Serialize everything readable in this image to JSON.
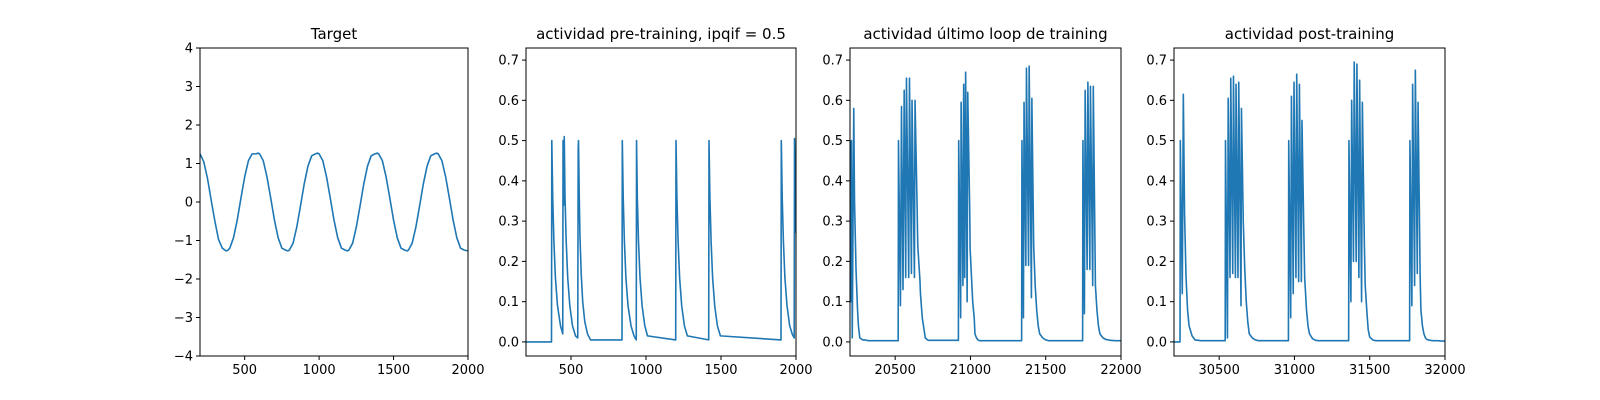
{
  "chart_data": [
    {
      "type": "line",
      "title": "Target",
      "xlabel": "",
      "ylabel": "",
      "xlim": [
        200,
        2000
      ],
      "ylim": [
        -4,
        4
      ],
      "xticks": [
        500,
        1000,
        1500,
        2000
      ],
      "yticks": [
        -4,
        -3,
        -2,
        -1,
        0,
        1,
        2,
        3,
        4
      ],
      "ytick_labels": [
        "−4",
        "−3",
        "−2",
        "−1",
        "0",
        "1",
        "2",
        "3",
        "4"
      ],
      "grid": false,
      "color": "#1f77b4",
      "series": [
        {
          "x": [
            200,
            225,
            250,
            275,
            300,
            325,
            350,
            375,
            385,
            400,
            425,
            450,
            475,
            500,
            525,
            550,
            575,
            590,
            600,
            625,
            650,
            675,
            700,
            725,
            750,
            775,
            790,
            800,
            825,
            850,
            875,
            900,
            925,
            950,
            975,
            990,
            1000,
            1025,
            1050,
            1075,
            1100,
            1125,
            1150,
            1175,
            1190,
            1200,
            1225,
            1250,
            1275,
            1300,
            1325,
            1350,
            1375,
            1390,
            1400,
            1425,
            1450,
            1475,
            1500,
            1525,
            1550,
            1575,
            1590,
            1600,
            1625,
            1650,
            1675,
            1700,
            1725,
            1750,
            1775,
            1790,
            1800,
            1825,
            1850,
            1875,
            1900,
            1925,
            1950,
            1975,
            2000
          ],
          "y": [
            1.25,
            1.05,
            0.62,
            0.05,
            -0.5,
            -0.98,
            -1.2,
            -1.27,
            -1.26,
            -1.2,
            -0.93,
            -0.47,
            0.1,
            0.65,
            1.07,
            1.25,
            1.25,
            1.27,
            1.25,
            1.07,
            0.65,
            0.1,
            -0.47,
            -0.93,
            -1.2,
            -1.25,
            -1.27,
            -1.25,
            -1.07,
            -0.65,
            -0.1,
            0.47,
            0.93,
            1.2,
            1.25,
            1.27,
            1.25,
            1.07,
            0.65,
            0.1,
            -0.47,
            -0.93,
            -1.2,
            -1.25,
            -1.27,
            -1.25,
            -1.07,
            -0.65,
            -0.1,
            0.47,
            0.93,
            1.2,
            1.25,
            1.27,
            1.25,
            1.07,
            0.65,
            0.1,
            -0.47,
            -0.93,
            -1.2,
            -1.25,
            -1.27,
            -1.25,
            -1.07,
            -0.65,
            -0.1,
            0.47,
            0.93,
            1.2,
            1.25,
            1.27,
            1.25,
            1.07,
            0.65,
            0.1,
            -0.47,
            -0.93,
            -1.2,
            -1.25,
            -1.27
          ]
        }
      ]
    },
    {
      "type": "line",
      "title": "actividad pre-training, ipqif = 0.5",
      "xlabel": "",
      "ylabel": "",
      "xlim": [
        200,
        2000
      ],
      "ylim": [
        -0.035,
        0.73
      ],
      "xticks": [
        500,
        1000,
        1500,
        2000
      ],
      "yticks": [
        0.0,
        0.1,
        0.2,
        0.3,
        0.4,
        0.5,
        0.6,
        0.7
      ],
      "ytick_labels": [
        "0.0",
        "0.1",
        "0.2",
        "0.3",
        "0.4",
        "0.5",
        "0.6",
        "0.7"
      ],
      "grid": false,
      "color": "#1f77b4",
      "series": [
        {
          "x": [
            200,
            370,
            372,
            378,
            386,
            396,
            410,
            430,
            445,
            447,
            452,
            455,
            460,
            468,
            478,
            492,
            510,
            530,
            545,
            548,
            550,
            555,
            560,
            568,
            578,
            592,
            610,
            630,
            840,
            842,
            848,
            856,
            866,
            880,
            900,
            920,
            935,
            937,
            942,
            950,
            960,
            974,
            992,
            1010,
            1198,
            1200,
            1206,
            1214,
            1224,
            1238,
            1256,
            1276,
            1418,
            1420,
            1426,
            1434,
            1444,
            1458,
            1476,
            1496,
            1900,
            1902,
            1908,
            1916,
            1926,
            1940,
            1958,
            1976,
            1988,
            1990,
            1993,
            1997,
            2000
          ],
          "y": [
            0,
            0,
            0.5,
            0.36,
            0.25,
            0.16,
            0.09,
            0.04,
            0.02,
            0.5,
            0.34,
            0.51,
            0.36,
            0.25,
            0.16,
            0.09,
            0.04,
            0.015,
            0.01,
            0.48,
            0.5,
            0.36,
            0.26,
            0.17,
            0.1,
            0.05,
            0.02,
            0.005,
            0.005,
            0.5,
            0.36,
            0.25,
            0.16,
            0.09,
            0.04,
            0.015,
            0.005,
            0.5,
            0.36,
            0.25,
            0.16,
            0.09,
            0.04,
            0.015,
            0.005,
            0.5,
            0.36,
            0.25,
            0.16,
            0.09,
            0.04,
            0.015,
            0.005,
            0.5,
            0.36,
            0.25,
            0.16,
            0.09,
            0.04,
            0.015,
            0.005,
            0.5,
            0.36,
            0.25,
            0.16,
            0.09,
            0.04,
            0.018,
            0.01,
            0.505,
            0.42,
            0.33,
            0.27
          ]
        }
      ]
    },
    {
      "type": "line",
      "title": "actividad último loop de training",
      "xlabel": "",
      "ylabel": "",
      "xlim": [
        20200,
        22000
      ],
      "ylim": [
        -0.035,
        0.73
      ],
      "xticks": [
        20500,
        21000,
        21500,
        22000
      ],
      "yticks": [
        0.0,
        0.1,
        0.2,
        0.3,
        0.4,
        0.5,
        0.6,
        0.7
      ],
      "ytick_labels": [
        "0.0",
        "0.1",
        "0.2",
        "0.3",
        "0.4",
        "0.5",
        "0.6",
        "0.7"
      ],
      "grid": false,
      "color": "#1f77b4",
      "series": [
        {
          "x": [
            20200,
            20205,
            20210,
            20215,
            20225,
            20230,
            20240,
            20250,
            20256,
            20265,
            20285,
            20300,
            20320,
            20340,
            20360,
            20400,
            20450,
            20480,
            20520,
            20522,
            20535,
            20542,
            20552,
            20560,
            20570,
            20575,
            20590,
            20595,
            20608,
            20612,
            20628,
            20632,
            20645,
            20650,
            20665,
            20668,
            20680,
            20690,
            20700,
            20715,
            20720,
            20920,
            20922,
            20935,
            20938,
            20950,
            20955,
            20962,
            20968,
            20978,
            20982,
            20995,
            20998,
            21015,
            21025,
            21030,
            21040,
            21050,
            21060,
            21070,
            21080,
            21100,
            21120,
            21340,
            21342,
            21352,
            21356,
            21368,
            21372,
            21386,
            21390,
            21405,
            21408,
            21420,
            21430,
            21440,
            21450,
            21460,
            21480,
            21500,
            21520,
            21745,
            21747,
            21757,
            21762,
            21775,
            21780,
            21793,
            21797,
            21812,
            21816,
            21830,
            21840,
            21850,
            21860,
            21880,
            21900,
            21930,
            21960,
            22000
          ],
          "y": [
            0.5,
            0.1,
            0.5,
            0.01,
            0.58,
            0.35,
            0.18,
            0.08,
            0.04,
            0.01,
            0.005,
            0.005,
            0.003,
            0.003,
            0.003,
            0.003,
            0.003,
            0.003,
            0.003,
            0.5,
            0.09,
            0.585,
            0.13,
            0.625,
            0.16,
            0.655,
            0.16,
            0.655,
            0.17,
            0.6,
            0.16,
            0.6,
            0.35,
            0.24,
            0.15,
            0.12,
            0.06,
            0.035,
            0.01,
            0.005,
            0.004,
            0.004,
            0.5,
            0.06,
            0.595,
            0.14,
            0.64,
            0.16,
            0.67,
            0.1,
            0.62,
            0.33,
            0.23,
            0.1,
            0.06,
            0.02,
            0.01,
            0.005,
            0.003,
            0.003,
            0.003,
            0.003,
            0.003,
            0.003,
            0.5,
            0.06,
            0.595,
            0.19,
            0.68,
            0.19,
            0.685,
            0.11,
            0.605,
            0.24,
            0.14,
            0.08,
            0.04,
            0.02,
            0.01,
            0.005,
            0.003,
            0.003,
            0.5,
            0.07,
            0.625,
            0.18,
            0.645,
            0.18,
            0.635,
            0.14,
            0.635,
            0.14,
            0.08,
            0.04,
            0.02,
            0.01,
            0.006,
            0.004,
            0.003,
            0.003
          ]
        }
      ]
    },
    {
      "type": "line",
      "title": "actividad post-training",
      "xlabel": "",
      "ylabel": "",
      "xlim": [
        30200,
        32000
      ],
      "ylim": [
        -0.035,
        0.73
      ],
      "xticks": [
        30500,
        31000,
        31500,
        32000
      ],
      "yticks": [
        0.0,
        0.1,
        0.2,
        0.3,
        0.4,
        0.5,
        0.6,
        0.7
      ],
      "ytick_labels": [
        "0.0",
        "0.1",
        "0.2",
        "0.3",
        "0.4",
        "0.5",
        "0.6",
        "0.7"
      ],
      "grid": false,
      "color": "#1f77b4",
      "series": [
        {
          "x": [
            30200,
            30240,
            30242,
            30255,
            30262,
            30270,
            30280,
            30290,
            30300,
            30320,
            30340,
            30380,
            30420,
            30460,
            30500,
            30540,
            30542,
            30555,
            30560,
            30572,
            30577,
            30590,
            30595,
            30608,
            30612,
            30625,
            30630,
            30645,
            30648,
            30660,
            30670,
            30680,
            30690,
            30700,
            30720,
            30740,
            30760,
            30960,
            30962,
            30975,
            30980,
            30992,
            30997,
            31010,
            31015,
            31028,
            31033,
            31046,
            31050,
            31062,
            31068,
            31080,
            31090,
            31100,
            31120,
            31140,
            31160,
            31360,
            31362,
            31375,
            31380,
            31392,
            31397,
            31410,
            31415,
            31428,
            31433,
            31446,
            31451,
            31464,
            31470,
            31482,
            31490,
            31500,
            31520,
            31540,
            31560,
            31765,
            31767,
            31780,
            31785,
            31798,
            31803,
            31816,
            31821,
            31835,
            31840,
            31850,
            31860,
            31870,
            31880,
            31900,
            31920,
            31950,
            31980,
            32000
          ],
          "y": [
            0,
            0,
            0.5,
            0.12,
            0.615,
            0.32,
            0.16,
            0.08,
            0.04,
            0.015,
            0.005,
            0.003,
            0.003,
            0.003,
            0.003,
            0.003,
            0.5,
            0.01,
            0.605,
            0.16,
            0.655,
            0.17,
            0.66,
            0.16,
            0.64,
            0.16,
            0.645,
            0.09,
            0.58,
            0.3,
            0.18,
            0.1,
            0.05,
            0.02,
            0.01,
            0.005,
            0.003,
            0.003,
            0.5,
            0.06,
            0.61,
            0.12,
            0.645,
            0.16,
            0.665,
            0.15,
            0.64,
            0.15,
            0.55,
            0.28,
            0.16,
            0.08,
            0.04,
            0.02,
            0.008,
            0.004,
            0.003,
            0.003,
            0.5,
            0.1,
            0.6,
            0.2,
            0.695,
            0.2,
            0.69,
            0.16,
            0.65,
            0.1,
            0.595,
            0.25,
            0.14,
            0.07,
            0.03,
            0.012,
            0.005,
            0.003,
            0.003,
            0.003,
            0.5,
            0.09,
            0.64,
            0.14,
            0.675,
            0.17,
            0.595,
            0.16,
            0.08,
            0.04,
            0.02,
            0.01,
            0.006,
            0.004,
            0.003,
            0.003,
            0.002,
            0.002
          ]
        }
      ]
    }
  ]
}
